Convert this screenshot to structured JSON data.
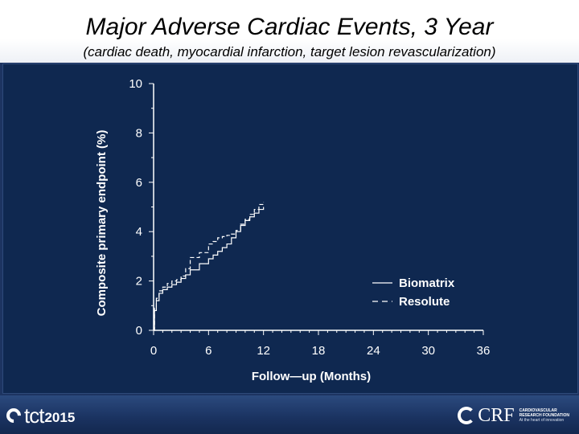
{
  "slide": {
    "title": "Major Adverse Cardiac Events, 3 Year",
    "subtitle": "(cardiac death, myocardial infarction, target lesion revascularization)"
  },
  "footer": {
    "left_logo_text": "tct",
    "left_logo_year": "2015",
    "right_logo_text": "CRF",
    "right_logo_name_line1": "CARDIOVASCULAR",
    "right_logo_name_line2": "RESEARCH FOUNDATION",
    "right_logo_tagline": "At the heart of innovation"
  },
  "colors": {
    "background": "#1d3461",
    "panel": "#0f2850",
    "axis": "#ffffff",
    "series": "#ffffff"
  },
  "chart_data": {
    "type": "line",
    "title": "",
    "xlabel": "Follow—up  (Months)",
    "ylabel": "Composite  primary  endpoint  (%)",
    "xlim": [
      0,
      36
    ],
    "ylim": [
      0,
      10
    ],
    "xticks": [
      0,
      6,
      12,
      18,
      24,
      30,
      36
    ],
    "yticks": [
      0,
      2,
      4,
      6,
      8,
      10
    ],
    "legend": {
      "position": "bottom-right"
    },
    "series": [
      {
        "name": "Biomatrix",
        "style": "solid",
        "x": [
          0,
          0.1,
          0.3,
          0.6,
          1.0,
          1.5,
          2.0,
          2.5,
          3.0,
          3.5,
          4.0,
          5.0,
          6.0,
          6.5,
          7.0,
          7.5,
          8.0,
          8.5,
          9.0,
          9.5,
          10.0,
          10.5,
          11.0,
          11.5,
          12.0
        ],
        "y": [
          0,
          0.8,
          1.2,
          1.5,
          1.65,
          1.75,
          1.85,
          1.95,
          2.1,
          2.25,
          2.45,
          2.7,
          2.9,
          3.05,
          3.2,
          3.35,
          3.5,
          3.75,
          4.0,
          4.25,
          4.45,
          4.6,
          4.75,
          4.9,
          5.0
        ]
      },
      {
        "name": "Resolute",
        "style": "dashed",
        "x": [
          0,
          0.1,
          0.3,
          0.6,
          1.0,
          1.5,
          2.0,
          2.5,
          3.0,
          3.5,
          4.0,
          5.0,
          6.0,
          6.5,
          7.0,
          7.5,
          8.0,
          8.5,
          9.0,
          9.5,
          10.0,
          10.5,
          11.0,
          11.5,
          12.0
        ],
        "y": [
          0,
          0.9,
          1.3,
          1.6,
          1.75,
          1.9,
          2.0,
          2.05,
          2.2,
          2.5,
          2.95,
          3.15,
          3.5,
          3.6,
          3.75,
          3.8,
          3.85,
          3.9,
          4.05,
          4.3,
          4.5,
          4.7,
          4.9,
          5.1,
          5.2
        ]
      }
    ]
  }
}
